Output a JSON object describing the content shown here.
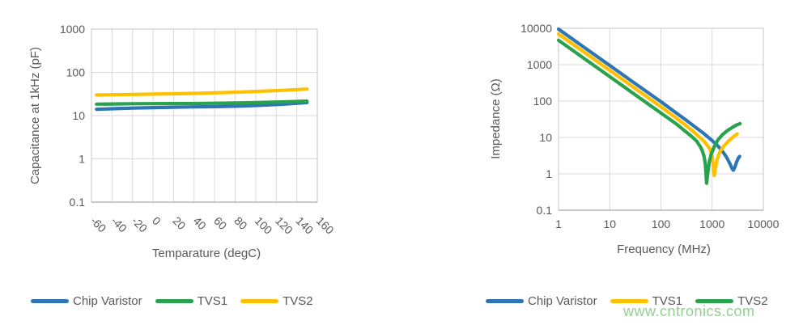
{
  "colors": {
    "blue": "#2E75B6",
    "green": "#28A24C",
    "yellow": "#FFC000",
    "axis_text": "#595959",
    "gridline": "#D9D9D9",
    "plot_border": "#C6C6C6",
    "axis_line": "#A6A6A6",
    "watermark_green": "#52B152"
  },
  "watermark": {
    "text": "www.cntronics.com"
  },
  "chart_data": [
    {
      "id": "capacitance",
      "type": "line",
      "title": "",
      "xlabel": "Temparature (degC)",
      "ylabel": "Capacitance at 1kHz (pF)",
      "xscale": "linear",
      "yscale": "log",
      "xlim": [
        -60,
        160
      ],
      "ylim": [
        0.1,
        1000
      ],
      "xticks": [
        -60,
        -40,
        -20,
        0,
        20,
        40,
        60,
        80,
        100,
        120,
        140,
        160
      ],
      "yticks": [
        0.1,
        1,
        10,
        100,
        1000
      ],
      "grid": true,
      "legend_position": "bottom",
      "series": [
        {
          "name": "Chip Varistor",
          "color": "#2E75B6",
          "points": [
            [
              -55,
              14
            ],
            [
              -40,
              14.4
            ],
            [
              -20,
              14.9
            ],
            [
              0,
              15.3
            ],
            [
              20,
              15.6
            ],
            [
              40,
              15.9
            ],
            [
              60,
              16.1
            ],
            [
              80,
              16.5
            ],
            [
              100,
              17.1
            ],
            [
              125,
              18.3
            ],
            [
              150,
              20
            ]
          ]
        },
        {
          "name": "TVS1",
          "color": "#28A24C",
          "points": [
            [
              -55,
              18.4
            ],
            [
              -40,
              18.6
            ],
            [
              -20,
              18.8
            ],
            [
              0,
              18.9
            ],
            [
              20,
              19
            ],
            [
              40,
              19.1
            ],
            [
              60,
              19.3
            ],
            [
              80,
              19.6
            ],
            [
              100,
              20
            ],
            [
              125,
              20.7
            ],
            [
              150,
              21.6
            ]
          ]
        },
        {
          "name": "TVS2",
          "color": "#FFC000",
          "points": [
            [
              -55,
              30
            ],
            [
              -40,
              30.4
            ],
            [
              -20,
              30.9
            ],
            [
              0,
              31.4
            ],
            [
              20,
              32
            ],
            [
              40,
              32.7
            ],
            [
              60,
              33.6
            ],
            [
              80,
              34.7
            ],
            [
              100,
              36.2
            ],
            [
              125,
              38.3
            ],
            [
              150,
              41
            ]
          ]
        }
      ]
    },
    {
      "id": "impedance",
      "type": "line",
      "title": "",
      "xlabel": "Frequency (MHz)",
      "ylabel": "Impedance (Ω)",
      "xscale": "log",
      "yscale": "log",
      "xlim": [
        1,
        10000
      ],
      "ylim": [
        0.1,
        10000
      ],
      "xticks": [
        1,
        10,
        100,
        1000,
        10000
      ],
      "yticks": [
        0.1,
        1,
        10,
        100,
        1000,
        10000
      ],
      "grid": true,
      "legend_position": "bottom",
      "series": [
        {
          "name": "Chip Varistor",
          "color": "#2E75B6",
          "points": [
            [
              1,
              9500
            ],
            [
              3,
              3150
            ],
            [
              10,
              950
            ],
            [
              30,
              318
            ],
            [
              100,
              96
            ],
            [
              200,
              47
            ],
            [
              300,
              31
            ],
            [
              500,
              18
            ],
            [
              700,
              12.5
            ],
            [
              1000,
              8.2
            ],
            [
              1300,
              5.8
            ],
            [
              1600,
              4.1
            ],
            [
              1900,
              2.9
            ],
            [
              2200,
              1.95
            ],
            [
              2450,
              1.4
            ],
            [
              2600,
              1.25
            ],
            [
              2800,
              1.55
            ],
            [
              3000,
              2.1
            ],
            [
              3250,
              2.7
            ],
            [
              3450,
              3
            ]
          ]
        },
        {
          "name": "TVS1",
          "color": "#FFC000",
          "points": [
            [
              1,
              7000
            ],
            [
              3,
              2330
            ],
            [
              10,
              700
            ],
            [
              30,
              233
            ],
            [
              100,
              70
            ],
            [
              200,
              34
            ],
            [
              300,
              22
            ],
            [
              400,
              15.8
            ],
            [
              500,
              12
            ],
            [
              700,
              7.8
            ],
            [
              900,
              4.8
            ],
            [
              1000,
              3
            ],
            [
              1050,
              1.7
            ],
            [
              1100,
              0.9
            ],
            [
              1160,
              1.4
            ],
            [
              1250,
              2.5
            ],
            [
              1400,
              3.9
            ],
            [
              1700,
              5.9
            ],
            [
              2100,
              8
            ],
            [
              2600,
              10.4
            ],
            [
              3100,
              12.5
            ]
          ]
        },
        {
          "name": "TVS2",
          "color": "#28A24C",
          "points": [
            [
              1,
              4700
            ],
            [
              3,
              1560
            ],
            [
              10,
              470
            ],
            [
              30,
              156
            ],
            [
              100,
              47
            ],
            [
              200,
              23.5
            ],
            [
              300,
              14.7
            ],
            [
              400,
              10.6
            ],
            [
              500,
              7.9
            ],
            [
              600,
              5.3
            ],
            [
              650,
              4.1
            ],
            [
              700,
              2.9
            ],
            [
              740,
              1.7
            ],
            [
              780,
              0.55
            ],
            [
              830,
              1.15
            ],
            [
              880,
              2.1
            ],
            [
              950,
              3.3
            ],
            [
              1100,
              5.6
            ],
            [
              1300,
              8.6
            ],
            [
              1600,
              12
            ],
            [
              2000,
              15.5
            ],
            [
              2500,
              19
            ],
            [
              3000,
              22
            ],
            [
              3500,
              24
            ]
          ]
        }
      ]
    }
  ]
}
